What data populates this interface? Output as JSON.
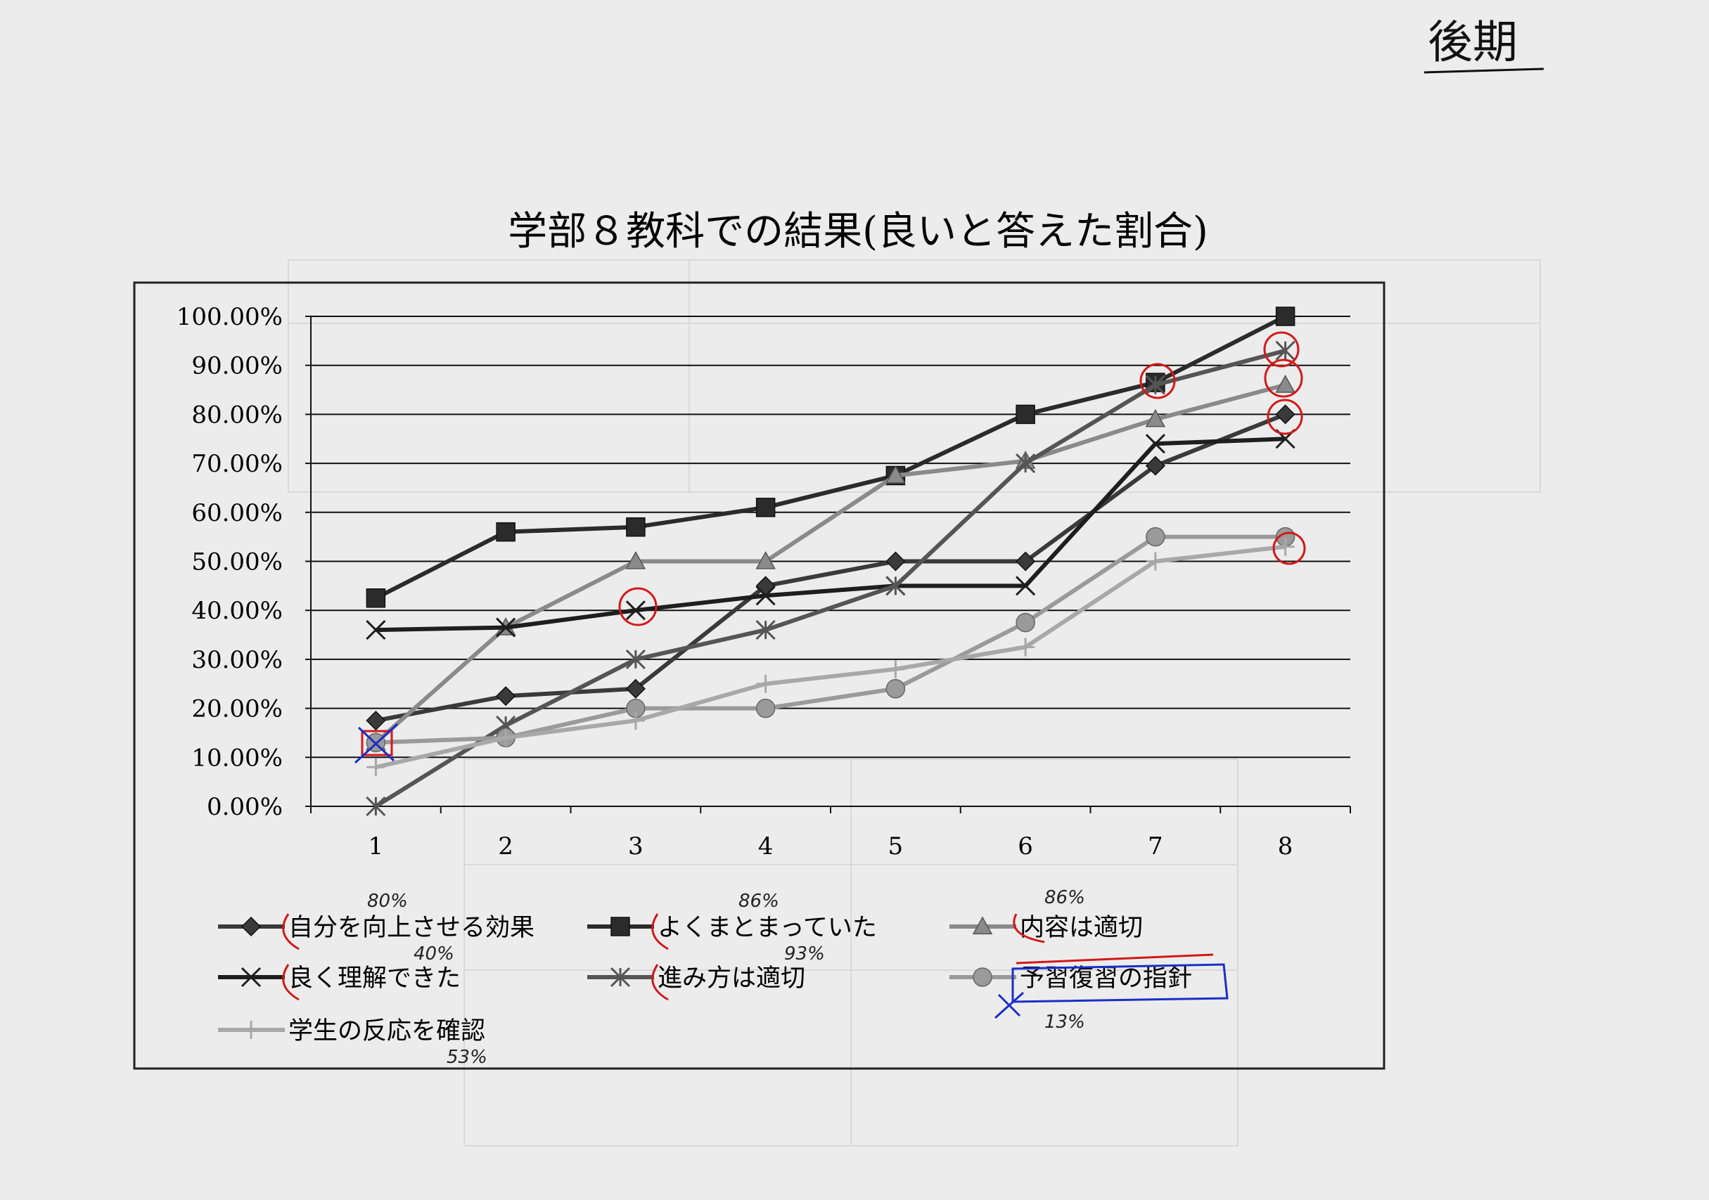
{
  "handwritten_header": "後期",
  "chart_data": {
    "type": "line",
    "title": "学部８教科での結果(良いと答えた割合)",
    "categories": [
      "1",
      "2",
      "3",
      "4",
      "5",
      "6",
      "7",
      "8"
    ],
    "ylim": [
      0,
      100
    ],
    "y_tick_labels": [
      "0.00%",
      "10.00%",
      "20.00%",
      "30.00%",
      "40.00%",
      "50.00%",
      "60.00%",
      "70.00%",
      "80.00%",
      "90.00%",
      "100.00%"
    ],
    "grid": true,
    "legend_position": "bottom",
    "series": [
      {
        "name": "自分を向上させる効果",
        "marker": "diamond",
        "color": "#3a3a3a",
        "values": [
          17.5,
          22.5,
          24,
          45,
          50,
          50,
          69.5,
          80
        ]
      },
      {
        "name": "よくまとまっていた",
        "marker": "square",
        "color": "#2b2b2b",
        "values": [
          42.5,
          56,
          57,
          61,
          67.5,
          80,
          86.5,
          100
        ]
      },
      {
        "name": "内容は適切",
        "marker": "triangle",
        "color": "#8a8a8a",
        "values": [
          13,
          36.5,
          50,
          50,
          67.5,
          70.5,
          79,
          86
        ]
      },
      {
        "name": "良く理解できた",
        "marker": "x",
        "color": "#1e1e1e",
        "values": [
          36,
          36.5,
          40,
          43,
          45,
          45,
          74,
          75
        ]
      },
      {
        "name": "進み方は適切",
        "marker": "star",
        "color": "#555555",
        "values": [
          0,
          16.5,
          30,
          36,
          45,
          70,
          86,
          93
        ]
      },
      {
        "name": "予習復習の指針",
        "marker": "circle",
        "color": "#9a9a9a",
        "values": [
          13,
          14,
          20,
          20,
          24,
          37.5,
          55,
          55
        ]
      },
      {
        "name": "学生の反応を確認",
        "marker": "plus",
        "color": "#a8a8a8",
        "values": [
          8,
          14,
          17.5,
          25,
          28,
          32.5,
          50,
          53
        ]
      }
    ]
  },
  "annotations": {
    "n1": "80%",
    "n2": "86%",
    "n3": "86%",
    "n4": "40%",
    "n5": "93%",
    "n6": "13%",
    "n7": "53%"
  }
}
